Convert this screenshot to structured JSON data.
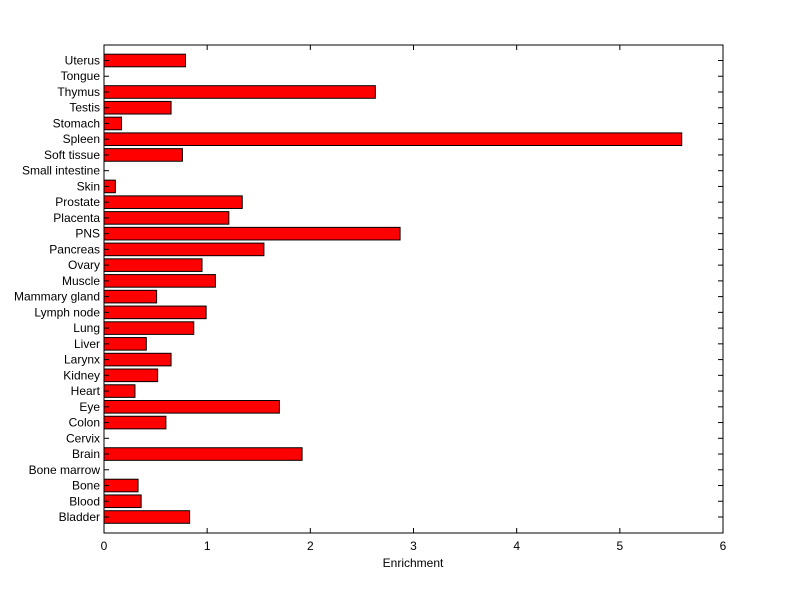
{
  "chart_data": {
    "type": "bar",
    "orientation": "horizontal",
    "title": "",
    "xlabel": "Enrichment",
    "ylabel": "",
    "xlim": [
      0,
      6
    ],
    "xticks": [
      0,
      1,
      2,
      3,
      4,
      5,
      6
    ],
    "grid": false,
    "legend": "none",
    "bar_color": "#ff0000",
    "bar_edge_color": "#000000",
    "categories": [
      "Uterus",
      "Tongue",
      "Thymus",
      "Testis",
      "Stomach",
      "Spleen",
      "Soft tissue",
      "Small intestine",
      "Skin",
      "Prostate",
      "Placenta",
      "PNS",
      "Pancreas",
      "Ovary",
      "Muscle",
      "Mammary gland",
      "Lymph node",
      "Lung",
      "Liver",
      "Larynx",
      "Kidney",
      "Heart",
      "Eye",
      "Colon",
      "Cervix",
      "Brain",
      "Bone marrow",
      "Bone",
      "Blood",
      "Bladder"
    ],
    "values": [
      0.79,
      0,
      2.63,
      0.65,
      0.17,
      5.6,
      0.76,
      0,
      0.11,
      1.34,
      1.21,
      2.87,
      1.55,
      0.95,
      1.08,
      0.51,
      0.99,
      0.87,
      0.41,
      0.65,
      0.52,
      0.3,
      1.7,
      0.6,
      0,
      1.92,
      0,
      0.33,
      0.36,
      0.83
    ]
  }
}
